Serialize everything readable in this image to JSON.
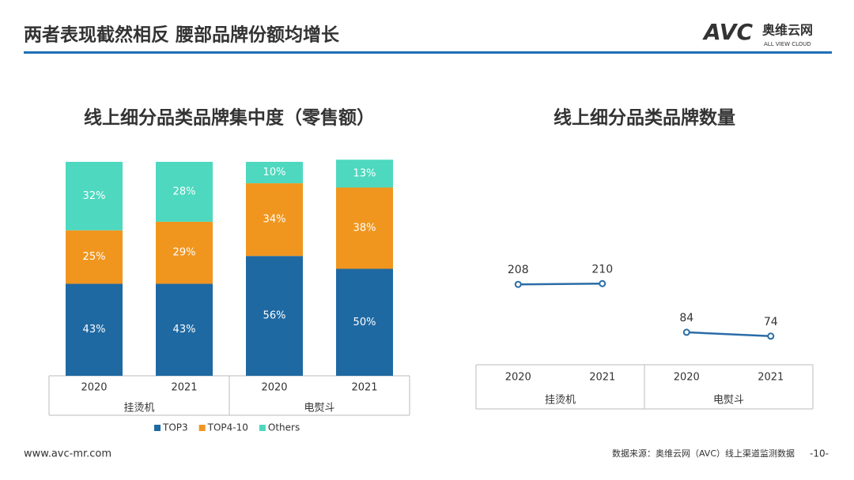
{
  "header": {
    "title": "两者表现截然相反  腰部品牌份额均增长",
    "logo": "AVC",
    "logo_cn": "奥维云网",
    "logo_en": "ALL VIEW CLOUD"
  },
  "chart_data": [
    {
      "type": "bar",
      "stacked": true,
      "title": "线上细分品类品牌集中度（零售额）",
      "categories": [
        "2020",
        "2021",
        "2020",
        "2021"
      ],
      "groups": [
        "挂烫机",
        "电熨斗"
      ],
      "series": [
        {
          "name": "TOP3",
          "color": "#1f69a3",
          "values": [
            43,
            43,
            56,
            50
          ],
          "value_labels": [
            "43%",
            "43%",
            "56%",
            "50%"
          ]
        },
        {
          "name": "TOP4-10",
          "color": "#f0961f",
          "values": [
            25,
            29,
            34,
            38
          ],
          "value_labels": [
            "25%",
            "29%",
            "34%",
            "38%"
          ]
        },
        {
          "name": "Others",
          "color": "#4dd8bf",
          "values": [
            32,
            28,
            10,
            13
          ],
          "value_labels": [
            "32%",
            "28%",
            "10%",
            "13%"
          ]
        }
      ],
      "ylim": [
        0,
        100
      ],
      "legend": "bottom"
    },
    {
      "type": "line",
      "title": "线上细分品类品牌数量",
      "categories": [
        "2020",
        "2021",
        "2020",
        "2021"
      ],
      "groups": [
        "挂烫机",
        "电熨斗"
      ],
      "series": [
        {
          "color": "#2a6ca6",
          "values": [
            208,
            210,
            null,
            null
          ]
        },
        {
          "color": "#2a6ca6",
          "values": [
            null,
            null,
            84,
            74
          ]
        }
      ],
      "ylim": [
        0,
        560
      ]
    }
  ],
  "footer": {
    "website": "www.avc-mr.com",
    "source": "数据来源：奥维云网（AVC）线上渠道监测数据",
    "page": "-10-"
  }
}
